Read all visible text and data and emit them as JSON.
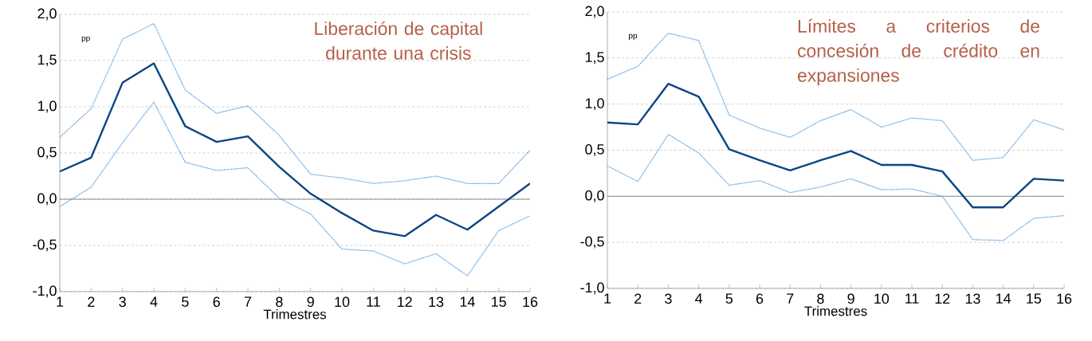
{
  "chart_data": [
    {
      "type": "line",
      "title": "Liberación de capital durante una crisis",
      "xlabel": "Trimestres",
      "ylabel": "pp",
      "x": [
        1,
        2,
        3,
        4,
        5,
        6,
        7,
        8,
        9,
        10,
        11,
        12,
        13,
        14,
        15,
        16
      ],
      "xlim": [
        1,
        16
      ],
      "xticks": [
        1,
        2,
        3,
        4,
        5,
        6,
        7,
        8,
        9,
        10,
        11,
        12,
        13,
        14,
        15,
        16
      ],
      "ylim": [
        -1,
        2
      ],
      "yticks": [
        {
          "value": -1,
          "label": "-1,0"
        },
        {
          "value": -0.5,
          "label": "-0,5"
        },
        {
          "value": 0,
          "label": "0,0"
        },
        {
          "value": 0.5,
          "label": "0,5"
        },
        {
          "value": 1,
          "label": "1,0"
        },
        {
          "value": 1.5,
          "label": "1,5"
        },
        {
          "value": 2,
          "label": "2,0"
        }
      ],
      "grid": "y",
      "ref_lines": [
        {
          "axis": "y",
          "value": 0,
          "color": "#808080"
        }
      ],
      "series": [
        {
          "color": "#3a8fd9",
          "line_style": "dotted",
          "values": [
            0.67,
            0.98,
            1.73,
            1.9,
            1.18,
            0.93,
            1.01,
            0.69,
            0.27,
            0.23,
            0.17,
            0.2,
            0.25,
            0.17,
            0.17,
            0.53
          ]
        },
        {
          "color": "#3a8fd9",
          "line_style": "dotted",
          "values": [
            -0.08,
            0.13,
            0.61,
            1.05,
            0.4,
            0.31,
            0.34,
            0.01,
            -0.16,
            -0.54,
            -0.56,
            -0.7,
            -0.59,
            -0.83,
            -0.34,
            -0.18
          ]
        },
        {
          "color": "#0a4585",
          "line_style": "solid",
          "values": [
            0.3,
            0.45,
            1.26,
            1.47,
            0.79,
            0.62,
            0.68,
            0.35,
            0.06,
            -0.15,
            -0.34,
            -0.4,
            -0.17,
            -0.33,
            -0.08,
            0.17
          ]
        }
      ]
    },
    {
      "type": "line",
      "title": "Límites a criterios de concesión de crédito en expansiones",
      "xlabel": "Trimestres",
      "ylabel": "pp",
      "x": [
        1,
        2,
        3,
        4,
        5,
        6,
        7,
        8,
        9,
        10,
        11,
        12,
        13,
        14,
        15,
        16
      ],
      "xlim": [
        1,
        16
      ],
      "xticks": [
        1,
        2,
        3,
        4,
        5,
        6,
        7,
        8,
        9,
        10,
        11,
        12,
        13,
        14,
        15,
        16
      ],
      "ylim": [
        -1,
        2
      ],
      "yticks": [
        {
          "value": -1,
          "label": "-1,0"
        },
        {
          "value": -0.5,
          "label": "-0,5"
        },
        {
          "value": 0,
          "label": "0,0"
        },
        {
          "value": 0.5,
          "label": "0,5"
        },
        {
          "value": 1,
          "label": "1,0"
        },
        {
          "value": 1.5,
          "label": "1,5"
        },
        {
          "value": 2,
          "label": "2,0"
        }
      ],
      "grid": "y",
      "ref_lines": [
        {
          "axis": "y",
          "value": 0,
          "color": "#808080"
        }
      ],
      "series": [
        {
          "color": "#3a8fd9",
          "line_style": "dotted",
          "values": [
            1.27,
            1.41,
            1.77,
            1.69,
            0.88,
            0.74,
            0.64,
            0.82,
            0.94,
            0.75,
            0.85,
            0.82,
            0.39,
            0.42,
            0.83,
            0.72
          ]
        },
        {
          "color": "#3a8fd9",
          "line_style": "dotted",
          "values": [
            0.33,
            0.16,
            0.67,
            0.47,
            0.12,
            0.17,
            0.04,
            0.1,
            0.19,
            0.07,
            0.08,
            0.0,
            -0.47,
            -0.48,
            -0.24,
            -0.21
          ]
        },
        {
          "color": "#0a4585",
          "line_style": "solid",
          "values": [
            0.8,
            0.78,
            1.22,
            1.08,
            0.51,
            0.39,
            0.28,
            0.39,
            0.49,
            0.34,
            0.34,
            0.27,
            -0.12,
            -0.12,
            0.19,
            0.17
          ]
        }
      ]
    }
  ]
}
